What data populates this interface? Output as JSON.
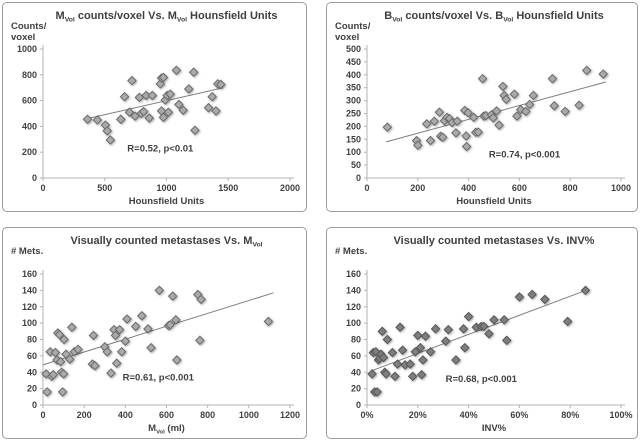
{
  "figure": {
    "background": "#ffffff",
    "panel_border_color": "#9c9c9c",
    "text_color": "#3f3f3f",
    "axis_color": "#b3b3b3",
    "trend_color": "#7f7f7f"
  },
  "chart_data": [
    {
      "type": "scatter",
      "position": "top-left",
      "title_parts": [
        {
          "text": "M"
        },
        {
          "text": "Vol",
          "sub": true
        },
        {
          "text": " counts/voxel Vs. M"
        },
        {
          "text": "Vol",
          "sub": true
        },
        {
          "text": "  Hounsfield Units"
        }
      ],
      "ylabel_lines": [
        "Counts/",
        "voxel"
      ],
      "xlabel_parts": [
        {
          "text": "Hounsfield Units"
        }
      ],
      "x_min": 0,
      "x_max": 2000,
      "y_min": 0,
      "y_max": 1000,
      "x_ticks": [
        0,
        500,
        1000,
        1500,
        2000
      ],
      "x_tick_labels": [
        "0",
        "500",
        "1000",
        "1500",
        "2000"
      ],
      "y_ticks": [
        0,
        200,
        400,
        600,
        800,
        1000
      ],
      "y_tick_labels": [
        "0",
        "200",
        "400",
        "600",
        "800",
        "1000"
      ],
      "annotation": {
        "text": "R=0.52, p<0.01",
        "x": 950,
        "y": 205
      },
      "trend": {
        "x1": 350,
        "y1": 458,
        "x2": 1460,
        "y2": 700
      },
      "marker": {
        "fill": "#aaaaaa",
        "stroke": "#6a6a6a"
      },
      "points": [
        [
          360,
          455
        ],
        [
          440,
          450
        ],
        [
          505,
          410
        ],
        [
          520,
          365
        ],
        [
          545,
          295
        ],
        [
          630,
          455
        ],
        [
          660,
          630
        ],
        [
          700,
          510
        ],
        [
          720,
          755
        ],
        [
          745,
          480
        ],
        [
          780,
          625
        ],
        [
          795,
          500
        ],
        [
          815,
          515
        ],
        [
          835,
          640
        ],
        [
          860,
          465
        ],
        [
          885,
          640
        ],
        [
          950,
          730
        ],
        [
          960,
          775
        ],
        [
          975,
          780
        ],
        [
          960,
          520
        ],
        [
          975,
          470
        ],
        [
          990,
          605
        ],
        [
          1005,
          640
        ],
        [
          1015,
          510
        ],
        [
          1030,
          650
        ],
        [
          1080,
          835
        ],
        [
          1100,
          570
        ],
        [
          1135,
          525
        ],
        [
          1180,
          690
        ],
        [
          1220,
          820
        ],
        [
          1230,
          370
        ],
        [
          1340,
          545
        ],
        [
          1370,
          630
        ],
        [
          1400,
          520
        ],
        [
          1415,
          730
        ],
        [
          1440,
          725
        ]
      ]
    },
    {
      "type": "scatter",
      "position": "top-right",
      "title_parts": [
        {
          "text": "B"
        },
        {
          "text": "Vol",
          "sub": true
        },
        {
          "text": " counts/voxel Vs. B"
        },
        {
          "text": "Vol",
          "sub": true
        },
        {
          "text": "  Hounsfield Units"
        }
      ],
      "ylabel_lines": [
        "Counts/",
        "voxel"
      ],
      "xlabel_parts": [
        {
          "text": "Hounsfield Units"
        }
      ],
      "x_min": 0,
      "x_max": 1000,
      "y_min": 0,
      "y_max": 500,
      "x_ticks": [
        0,
        200,
        400,
        600,
        800,
        1000
      ],
      "x_tick_labels": [
        "0",
        "200",
        "400",
        "600",
        "800",
        "1000"
      ],
      "y_ticks": [
        0,
        50,
        100,
        150,
        200,
        250,
        300,
        350,
        400,
        450,
        500
      ],
      "y_tick_labels": [
        "0",
        "50",
        "100",
        "150",
        "200",
        "250",
        "300",
        "350",
        "400",
        "450",
        "500"
      ],
      "annotation": {
        "text": "R=0.74, p<0.001",
        "x": 620,
        "y": 80
      },
      "trend": {
        "x1": 75,
        "y1": 140,
        "x2": 940,
        "y2": 372
      },
      "marker": {
        "fill": "#aaaaaa",
        "stroke": "#6a6a6a"
      },
      "points": [
        [
          80,
          197
        ],
        [
          195,
          145
        ],
        [
          200,
          127
        ],
        [
          235,
          210
        ],
        [
          250,
          145
        ],
        [
          265,
          220
        ],
        [
          285,
          255
        ],
        [
          290,
          162
        ],
        [
          298,
          158
        ],
        [
          305,
          222
        ],
        [
          315,
          235
        ],
        [
          325,
          230
        ],
        [
          335,
          215
        ],
        [
          350,
          175
        ],
        [
          355,
          220
        ],
        [
          385,
          262
        ],
        [
          390,
          163
        ],
        [
          392,
          122
        ],
        [
          398,
          253
        ],
        [
          420,
          235
        ],
        [
          428,
          177
        ],
        [
          438,
          178
        ],
        [
          455,
          385
        ],
        [
          460,
          240
        ],
        [
          468,
          242
        ],
        [
          490,
          245
        ],
        [
          497,
          233
        ],
        [
          510,
          260
        ],
        [
          520,
          205
        ],
        [
          535,
          355
        ],
        [
          540,
          320
        ],
        [
          548,
          305
        ],
        [
          580,
          325
        ],
        [
          590,
          240
        ],
        [
          605,
          265
        ],
        [
          625,
          258
        ],
        [
          640,
          285
        ],
        [
          655,
          320
        ],
        [
          730,
          385
        ],
        [
          737,
          280
        ],
        [
          780,
          258
        ],
        [
          835,
          282
        ],
        [
          865,
          417
        ],
        [
          930,
          403
        ]
      ]
    },
    {
      "type": "scatter",
      "position": "bottom-left",
      "title_parts": [
        {
          "text": "Visually counted metastases Vs. M"
        },
        {
          "text": "Vol",
          "sub": true
        }
      ],
      "ylabel_lines": [
        "# Mets."
      ],
      "xlabel_parts": [
        {
          "text": "M"
        },
        {
          "text": "Vol",
          "sub": true
        },
        {
          "text": " (ml)"
        }
      ],
      "x_min": 0,
      "x_max": 1200,
      "y_min": 0,
      "y_max": 160,
      "x_ticks": [
        0,
        200,
        400,
        600,
        800,
        1000,
        1200
      ],
      "x_tick_labels": [
        "0",
        "200",
        "400",
        "600",
        "800",
        "1000",
        "1200"
      ],
      "y_ticks": [
        0,
        20,
        40,
        60,
        80,
        100,
        120,
        140,
        160
      ],
      "y_tick_labels": [
        "0",
        "20",
        "40",
        "60",
        "80",
        "100",
        "120",
        "140",
        "160"
      ],
      "annotation": {
        "text": "R=0.61, p<0.001",
        "x": 560,
        "y": 30
      },
      "trend": {
        "x1": 0,
        "y1": 49,
        "x2": 1120,
        "y2": 137
      },
      "marker": {
        "fill": "#aaaaaa",
        "stroke": "#6a6a6a"
      },
      "points": [
        [
          15,
          38
        ],
        [
          20,
          16
        ],
        [
          35,
          65
        ],
        [
          42,
          35
        ],
        [
          50,
          37
        ],
        [
          60,
          64
        ],
        [
          68,
          55
        ],
        [
          72,
          88
        ],
        [
          80,
          86
        ],
        [
          85,
          53
        ],
        [
          90,
          40
        ],
        [
          95,
          16
        ],
        [
          100,
          38
        ],
        [
          102,
          80
        ],
        [
          112,
          62
        ],
        [
          130,
          56
        ],
        [
          140,
          95
        ],
        [
          152,
          65
        ],
        [
          170,
          68
        ],
        [
          240,
          50
        ],
        [
          245,
          85
        ],
        [
          252,
          48
        ],
        [
          300,
          71
        ],
        [
          312,
          65
        ],
        [
          330,
          39
        ],
        [
          345,
          92
        ],
        [
          352,
          85
        ],
        [
          358,
          51
        ],
        [
          372,
          92
        ],
        [
          382,
          65
        ],
        [
          400,
          78
        ],
        [
          408,
          105
        ],
        [
          450,
          96
        ],
        [
          480,
          109
        ],
        [
          510,
          93
        ],
        [
          525,
          70
        ],
        [
          565,
          140
        ],
        [
          610,
          97
        ],
        [
          618,
          98
        ],
        [
          630,
          133
        ],
        [
          645,
          104
        ],
        [
          650,
          55
        ],
        [
          752,
          135
        ],
        [
          762,
          79
        ],
        [
          768,
          129
        ],
        [
          1095,
          102
        ]
      ]
    },
    {
      "type": "scatter",
      "position": "bottom-right",
      "title_parts": [
        {
          "text": "Visually counted metastases Vs. INV%"
        }
      ],
      "ylabel_lines": [
        "# Mets."
      ],
      "xlabel_parts": [
        {
          "text": "INV%"
        }
      ],
      "x_min": 0,
      "x_max": 100,
      "y_min": 0,
      "y_max": 160,
      "x_ticks": [
        0,
        20,
        40,
        60,
        80,
        100
      ],
      "x_tick_labels": [
        "0%",
        "20%",
        "40%",
        "60%",
        "80%",
        "100%"
      ],
      "y_ticks": [
        0,
        20,
        40,
        60,
        80,
        100,
        120,
        140,
        160
      ],
      "y_tick_labels": [
        "0",
        "20",
        "40",
        "60",
        "80",
        "100",
        "120",
        "140",
        "160"
      ],
      "annotation": {
        "text": "R=0.68, p<0.001",
        "x": 45,
        "y": 28
      },
      "trend": {
        "x1": 2,
        "y1": 42,
        "x2": 87,
        "y2": 141
      },
      "marker": {
        "fill": "#7e7e7e",
        "stroke": "#575757"
      },
      "points": [
        [
          2,
          38
        ],
        [
          2.5,
          64
        ],
        [
          3,
          16
        ],
        [
          3.5,
          65
        ],
        [
          4,
          16
        ],
        [
          4.5,
          55
        ],
        [
          5,
          57
        ],
        [
          5.5,
          62
        ],
        [
          6,
          90
        ],
        [
          6.5,
          58
        ],
        [
          7,
          40
        ],
        [
          7.5,
          38
        ],
        [
          8,
          80
        ],
        [
          10,
          64
        ],
        [
          11,
          35
        ],
        [
          12,
          50
        ],
        [
          13,
          95
        ],
        [
          14,
          67
        ],
        [
          15,
          49
        ],
        [
          17,
          50
        ],
        [
          18,
          35
        ],
        [
          19,
          65
        ],
        [
          20,
          85
        ],
        [
          21,
          70
        ],
        [
          21.5,
          37
        ],
        [
          22,
          55
        ],
        [
          23,
          84
        ],
        [
          25,
          65
        ],
        [
          27,
          93
        ],
        [
          31,
          78
        ],
        [
          32,
          92
        ],
        [
          35,
          55
        ],
        [
          38,
          93
        ],
        [
          38.5,
          70
        ],
        [
          40,
          108
        ],
        [
          43,
          95
        ],
        [
          45,
          96
        ],
        [
          46,
          96
        ],
        [
          48,
          87
        ],
        [
          50,
          104
        ],
        [
          54,
          104
        ],
        [
          55,
          79
        ],
        [
          60,
          132
        ],
        [
          65,
          135
        ],
        [
          70,
          129
        ],
        [
          79,
          102
        ],
        [
          86,
          140
        ]
      ]
    }
  ]
}
